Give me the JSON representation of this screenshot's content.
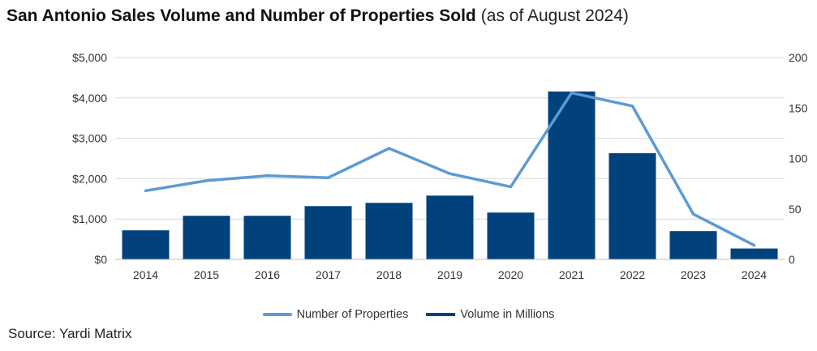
{
  "title": {
    "main": "San Antonio Sales Volume and Number of Properties Sold",
    "sub": "(as of August 2024)"
  },
  "source": "Source: Yardi Matrix",
  "colors": {
    "bar": "#02427c",
    "line": "#5b9bd5",
    "grid": "#d9d9d9",
    "axis": "#bfbfbf"
  },
  "chart_data": {
    "type": "bar",
    "categories": [
      "2014",
      "2015",
      "2016",
      "2017",
      "2018",
      "2019",
      "2020",
      "2021",
      "2022",
      "2023",
      "2024"
    ],
    "series": [
      {
        "name": "Volume in Millions",
        "type": "bar",
        "axis": "left",
        "values": [
          720,
          1080,
          1080,
          1320,
          1400,
          1580,
          1160,
          4160,
          2630,
          700,
          270
        ]
      },
      {
        "name": "Number of Properties",
        "type": "line",
        "axis": "right",
        "values": [
          68,
          78,
          83,
          81,
          110,
          85,
          72,
          165,
          152,
          45,
          14
        ]
      }
    ],
    "left_axis": {
      "ylim": [
        0,
        5000
      ],
      "ticks": [
        0,
        1000,
        2000,
        3000,
        4000,
        5000
      ],
      "tick_labels": [
        "$0",
        "$1,000",
        "$2,000",
        "$3,000",
        "$4,000",
        "$5,000"
      ]
    },
    "right_axis": {
      "ylim": [
        0,
        200
      ],
      "ticks": [
        0,
        50,
        100,
        150,
        200
      ],
      "tick_labels": [
        "0",
        "50",
        "100",
        "150",
        "200"
      ]
    },
    "grid": true,
    "legend": "bottom-center"
  }
}
